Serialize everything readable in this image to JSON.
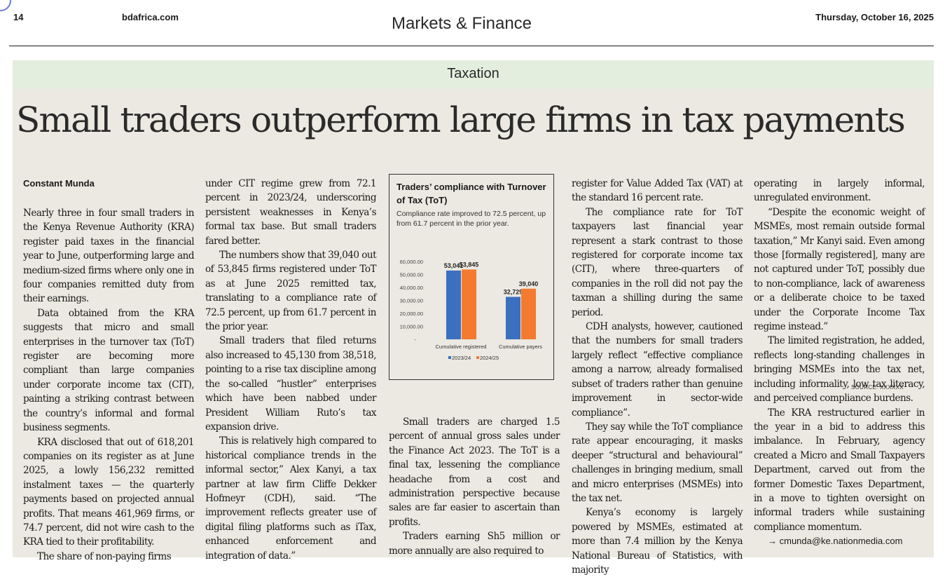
{
  "header": {
    "page_number": "14",
    "site": "bdafrica.com",
    "section": "Markets & Finance",
    "date": "Thursday, October 16, 2025"
  },
  "article": {
    "kicker": "Taxation",
    "headline": "Small traders outperform large firms in tax payments",
    "byline": "Constant Munda",
    "col1": [
      "Nearly three in four small traders in the Kenya Revenue Authority (KRA) register paid taxes in the financial year to June, outperforming large and medium-sized firms where only one in four companies remitted duty from their earnings.",
      "Data obtained from the KRA suggests that micro and small enterprises in the turnover tax (ToT) register are becoming more compliant than large companies under corporate income tax (CIT), painting a striking contrast between the country’s informal and formal business segments.",
      "KRA disclosed that out of 618,201 companies on its register as at June 2025, a lowly 156,232 remitted instalment taxes — the quarterly payments based on projected annual profits. That means 461,969 firms, or 74.7 percent, did not wire cash to the KRA tied to their profitability.",
      "The share of non-paying firms"
    ],
    "col2": [
      "under CIT regime grew from 72.1 percent in 2023/24, underscoring persistent weaknesses in Kenya’s formal tax base. But small traders fared better.",
      "The numbers show that 39,040 out of 53,845 firms registered under ToT as at June 2025 remitted tax, translating to a compliance rate of 72.5 percent, up from 61.7 percent in the prior year.",
      "Small traders that filed returns also increased to 45,130 from 38,518, pointing to a rise tax discipline among the so-called “hustler” enterprises which have been nabbed under President William Ruto’s tax expansion drive.",
      "This is relatively high compared to historical compliance trends in the informal sector,” Alex Kanyi, a tax partner at law firm Cliffe Dekker Hofmeyr (CDH), said. “The improvement reflects greater use of digital filing platforms such as iTax, enhanced enforcement and integration of data.”"
    ],
    "col3": [
      "Small traders are charged 1.5 percent of annual gross sales under the Finance Act 2023. The ToT is a final tax, lessening the compliance headache from a cost and administration perspective because sales are far easier to ascertain than profits.",
      "Traders earning Sh5 million or more annually are also required to"
    ],
    "col4": [
      "register for Value Added Tax (VAT) at the standard 16 percent rate.",
      "The compliance rate for ToT taxpayers last financial year represent a stark contrast to those registered for corporate income tax (CIT), where three-quarters of companies in the roll did not pay the taxman a shilling during the same period.",
      "CDH analysts, however, cautioned that the numbers for small traders largely reflect “effective compliance among a narrow, already formalised subset of traders rather than genuine improvement in sector-wide compliance”.",
      "They say while the ToT compliance rate appear encouraging, it masks deeper “structural and behavioural” challenges in bringing medium, small and micro enterprises (MSMEs) into the tax net.",
      "Kenya’s economy is largely powered by MSMEs, estimated at more than 7.4 million by the Kenya National Bureau of Statistics, with majority"
    ],
    "col5": [
      "operating in largely informal, unregulated environment.",
      "“Despite the economic weight of MSMEs, most remain outside formal taxation,” Mr Kanyi said. Even among those [formally registered], many are not captured under ToT, possibly due to non-compliance, lack of awareness or a deliberate choice to be taxed under the Corporate Income Tax regime instead.”",
      "The limited registration, he added, reflects long-standing challenges in bringing MSMEs into the tax net, including informality, low tax literacy, and perceived compliance burdens.",
      "The KRA restructured earlier in the year in a bid to address this imbalance. In February, agency created a Micro and Small Taxpayers Department, carved out from the former Domestic Taxes Department, in a move to tighten oversight on informal traders while sustaining compliance momentum."
    ],
    "email": "→ cmunda@ke.nationmedia.com"
  },
  "chart_data": {
    "type": "bar",
    "title": "Traders’ compliance with Turnover of Tax (ToT)",
    "subtitle": "Compliance rate improved to 72.5 percent, up from 61.7 percent in the prior year.",
    "categories": [
      "Cumulative registered",
      "Cumulative payers"
    ],
    "series": [
      {
        "name": "2023/24",
        "color": "#3b6fc0",
        "values": [
          53041,
          32729
        ]
      },
      {
        "name": "2024/25",
        "color": "#f47a2f",
        "values": [
          53845,
          39040
        ]
      }
    ],
    "value_labels": [
      [
        "53,041",
        "32,729"
      ],
      [
        "53,845",
        "39,040"
      ]
    ],
    "y_ticks": [
      "10,000.00",
      "20,000.00",
      "30,000.00",
      "40,000.00",
      "50,000.00",
      "60,000.00"
    ],
    "y_tick_values": [
      10000,
      20000,
      30000,
      40000,
      50000,
      60000
    ],
    "ylim": [
      0,
      60000
    ],
    "zero_label": "-",
    "legend_position": "bottom",
    "source": "SOURCE: XXXXXX"
  }
}
